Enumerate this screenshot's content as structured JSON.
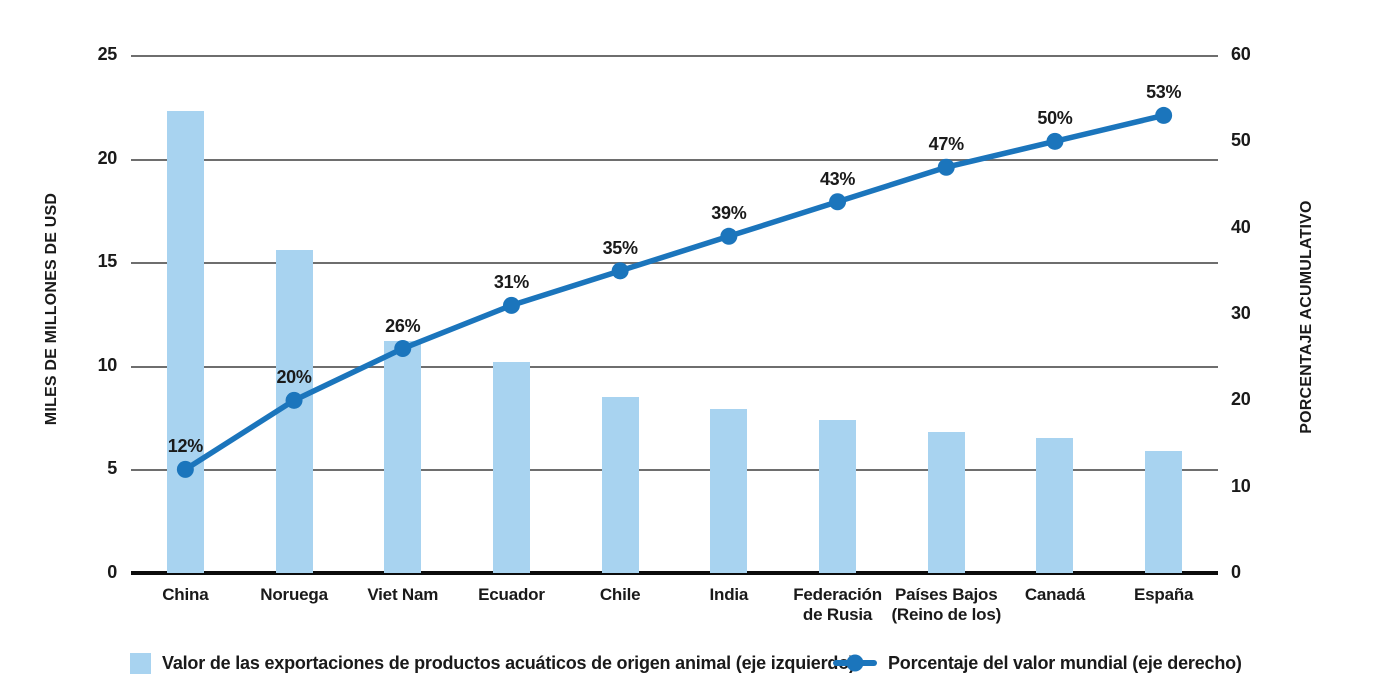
{
  "chart_data": {
    "type": "pareto (bar + line, dual axis)",
    "categories": [
      "China",
      "Noruega",
      "Viet Nam",
      "Ecuador",
      "Chile",
      "India",
      "Federación\nde Rusia",
      "Países Bajos\n(Reino de los)",
      "Canadá",
      "España"
    ],
    "series": [
      {
        "name": "Valor de las exportaciones de productos acuáticos de origen animal (eje izquierdo)",
        "type": "bar",
        "axis": "left",
        "values": [
          22.3,
          15.6,
          11.2,
          10.2,
          8.5,
          7.9,
          7.4,
          6.8,
          6.5,
          5.9
        ]
      },
      {
        "name": "Porcentaje del valor mundial (eje derecho)",
        "type": "line",
        "axis": "right",
        "values": [
          12,
          20,
          26,
          31,
          35,
          39,
          43,
          47,
          50,
          53
        ],
        "point_labels": [
          "12%",
          "20%",
          "26%",
          "31%",
          "35%",
          "39%",
          "43%",
          "47%",
          "50%",
          "53%"
        ]
      }
    ],
    "left_axis": {
      "title": "MILES DE MILLONES DE USD",
      "ticks": [
        0,
        5,
        10,
        15,
        20,
        25
      ],
      "min": 0,
      "max": 25
    },
    "right_axis": {
      "title": "PORCENTAJE ACUMULATIVO",
      "ticks": [
        0,
        10,
        20,
        30,
        40,
        50,
        60
      ],
      "min": 0,
      "max": 60
    },
    "grid": "horizontal lines at left-axis tick positions",
    "legend_position": "bottom",
    "colors": {
      "bar": "#A8D3F0",
      "line": "#1B75BC",
      "text": "#1A1A1A"
    }
  },
  "legend": [
    {
      "label": "Valor de las exportaciones de productos acuáticos de origen animal (eje izquierdo)",
      "marker": "bar-swatch"
    },
    {
      "label": "Porcentaje del valor mundial (eje derecho)",
      "marker": "line-dot"
    }
  ]
}
